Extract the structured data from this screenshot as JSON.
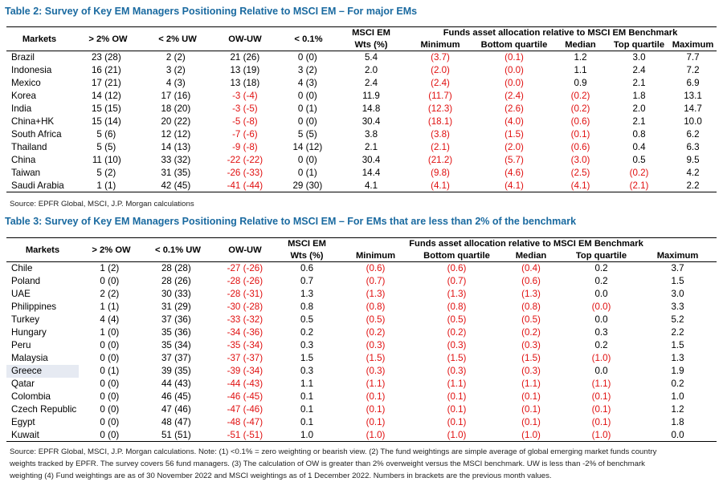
{
  "table2": {
    "title": "Table 2: Survey of Key EM Managers Positioning Relative to MSCI EM – For major EMs",
    "headers": {
      "markets": "Markets",
      "ow": "> 2% OW",
      "uw": "< 2% UW",
      "owuw": "OW-UW",
      "lt01": "< 0.1%",
      "msci_1": "MSCI EM",
      "msci_2": "Wts (%)",
      "group": "Funds asset allocation relative to MSCI EM Benchmark",
      "min": "Minimum",
      "bq": "Bottom quartile",
      "med": "Median",
      "tq": "Top quartile",
      "max": "Maximum"
    },
    "rows": [
      {
        "m": "Brazil",
        "ow": "23",
        "owp": "(28)",
        "uw": "2",
        "uwp": "(2)",
        "d": "21",
        "dp": "(26)",
        "z": "0",
        "zp": "(0)",
        "w": "5.4",
        "min": "(3.7)",
        "bq": "(0.1)",
        "med": "1.2",
        "tq": "3.0",
        "max": "7.7"
      },
      {
        "m": "Indonesia",
        "ow": "16",
        "owp": "(21)",
        "uw": "3",
        "uwp": "(2)",
        "d": "13",
        "dp": "(19)",
        "z": "3",
        "zp": "(2)",
        "w": "2.0",
        "min": "(2.0)",
        "bq": "(0.0)",
        "med": "1.1",
        "tq": "2.4",
        "max": "7.2"
      },
      {
        "m": "Mexico",
        "ow": "17",
        "owp": "(21)",
        "uw": "4",
        "uwp": "(3)",
        "d": "13",
        "dp": "(18)",
        "z": "4",
        "zp": "(3)",
        "w": "2.4",
        "min": "(2.4)",
        "bq": "(0.0)",
        "med": "0.9",
        "tq": "2.1",
        "max": "6.9"
      },
      {
        "m": "Korea",
        "ow": "14",
        "owp": "(12)",
        "uw": "17",
        "uwp": "(16)",
        "d": "-3",
        "dp": "(-4)",
        "z": "0",
        "zp": "(0)",
        "w": "11.9",
        "min": "(11.7)",
        "bq": "(2.4)",
        "med": "(0.2)",
        "tq": "1.8",
        "max": "13.1"
      },
      {
        "m": "India",
        "ow": "15",
        "owp": "(15)",
        "uw": "18",
        "uwp": "(20)",
        "d": "-3",
        "dp": "(-5)",
        "z": "0",
        "zp": "(1)",
        "w": "14.8",
        "min": "(12.3)",
        "bq": "(2.6)",
        "med": "(0.2)",
        "tq": "2.0",
        "max": "14.7"
      },
      {
        "m": "China+HK",
        "ow": "15",
        "owp": "(14)",
        "uw": "20",
        "uwp": "(22)",
        "d": "-5",
        "dp": "(-8)",
        "z": "0",
        "zp": "(0)",
        "w": "30.4",
        "min": "(18.1)",
        "bq": "(4.0)",
        "med": "(0.6)",
        "tq": "2.1",
        "max": "10.0"
      },
      {
        "m": "South Africa",
        "ow": "5",
        "owp": "(6)",
        "uw": "12",
        "uwp": "(12)",
        "d": "-7",
        "dp": "(-6)",
        "z": "5",
        "zp": "(5)",
        "w": "3.8",
        "min": "(3.8)",
        "bq": "(1.5)",
        "med": "(0.1)",
        "tq": "0.8",
        "max": "6.2"
      },
      {
        "m": "Thailand",
        "ow": "5",
        "owp": "(5)",
        "uw": "14",
        "uwp": "(13)",
        "d": "-9",
        "dp": "(-8)",
        "z": "14",
        "zp": "(12)",
        "w": "2.1",
        "min": "(2.1)",
        "bq": "(2.0)",
        "med": "(0.6)",
        "tq": "0.4",
        "max": "6.3"
      },
      {
        "m": "China",
        "ow": "11",
        "owp": "(10)",
        "uw": "33",
        "uwp": "(32)",
        "d": "-22",
        "dp": "(-22)",
        "z": "0",
        "zp": "(0)",
        "w": "30.4",
        "min": "(21.2)",
        "bq": "(5.7)",
        "med": "(3.0)",
        "tq": "0.5",
        "max": "9.5"
      },
      {
        "m": "Taiwan",
        "ow": "5",
        "owp": "(2)",
        "uw": "31",
        "uwp": "(35)",
        "d": "-26",
        "dp": "(-33)",
        "z": "0",
        "zp": "(1)",
        "w": "14.4",
        "min": "(9.8)",
        "bq": "(4.6)",
        "med": "(2.5)",
        "tq": "(0.2)",
        "max": "4.2"
      },
      {
        "m": "Saudi Arabia",
        "ow": "1",
        "owp": "(1)",
        "uw": "42",
        "uwp": "(45)",
        "d": "-41",
        "dp": "(-44)",
        "z": "29",
        "zp": "(30)",
        "w": "4.1",
        "min": "(4.1)",
        "bq": "(4.1)",
        "med": "(4.1)",
        "tq": "(2.1)",
        "max": "2.2"
      }
    ],
    "source": "Source: EPFR Global, MSCI, J.P. Morgan calculations"
  },
  "table3": {
    "title": "Table 3: Survey of Key EM Managers Positioning Relative to MSCI EM – For EMs that are less than 2% of the benchmark",
    "headers": {
      "markets": "Markets",
      "ow": "> 2% OW",
      "uw": "< 0.1% UW",
      "owuw": "OW-UW",
      "msci_1": "MSCI EM",
      "msci_2": "Wts (%)",
      "group": "Funds asset allocation relative to MSCI EM Benchmark",
      "min": "Minimum",
      "bq": "Bottom quartile",
      "med": "Median",
      "tq": "Top quartile",
      "max": "Maximum"
    },
    "rows": [
      {
        "m": "Chile",
        "ow": "1",
        "owp": "(2)",
        "uw": "28",
        "uwp": "(28)",
        "d": "-27",
        "dp": "(-26)",
        "w": "0.6",
        "min": "(0.6)",
        "bq": "(0.6)",
        "med": "(0.4)",
        "tq": "0.2",
        "max": "3.7"
      },
      {
        "m": "Poland",
        "ow": "0",
        "owp": "(0)",
        "uw": "28",
        "uwp": "(26)",
        "d": "-28",
        "dp": "(-26)",
        "w": "0.7",
        "min": "(0.7)",
        "bq": "(0.7)",
        "med": "(0.6)",
        "tq": "0.2",
        "max": "1.5"
      },
      {
        "m": "UAE",
        "ow": "2",
        "owp": "(2)",
        "uw": "30",
        "uwp": "(33)",
        "d": "-28",
        "dp": "(-31)",
        "w": "1.3",
        "min": "(1.3)",
        "bq": "(1.3)",
        "med": "(1.3)",
        "tq": "0.0",
        "max": "3.0"
      },
      {
        "m": "Philippines",
        "ow": "1",
        "owp": "(1)",
        "uw": "31",
        "uwp": "(29)",
        "d": "-30",
        "dp": "(-28)",
        "w": "0.8",
        "min": "(0.8)",
        "bq": "(0.8)",
        "med": "(0.8)",
        "tq": "(0.0)",
        "max": "3.3"
      },
      {
        "m": "Turkey",
        "ow": "4",
        "owp": "(4)",
        "uw": "37",
        "uwp": "(36)",
        "d": "-33",
        "dp": "(-32)",
        "w": "0.5",
        "min": "(0.5)",
        "bq": "(0.5)",
        "med": "(0.5)",
        "tq": "0.0",
        "max": "5.2"
      },
      {
        "m": "Hungary",
        "ow": "1",
        "owp": "(0)",
        "uw": "35",
        "uwp": "(36)",
        "d": "-34",
        "dp": "(-36)",
        "w": "0.2",
        "min": "(0.2)",
        "bq": "(0.2)",
        "med": "(0.2)",
        "tq": "0.3",
        "max": "2.2"
      },
      {
        "m": "Peru",
        "ow": "0",
        "owp": "(0)",
        "uw": "35",
        "uwp": "(34)",
        "d": "-35",
        "dp": "(-34)",
        "w": "0.3",
        "min": "(0.3)",
        "bq": "(0.3)",
        "med": "(0.3)",
        "tq": "0.2",
        "max": "1.5"
      },
      {
        "m": "Malaysia",
        "ow": "0",
        "owp": "(0)",
        "uw": "37",
        "uwp": "(37)",
        "d": "-37",
        "dp": "(-37)",
        "w": "1.5",
        "min": "(1.5)",
        "bq": "(1.5)",
        "med": "(1.5)",
        "tq": "(1.0)",
        "max": "1.3"
      },
      {
        "m": "Greece",
        "ow": "0",
        "owp": "(1)",
        "uw": "39",
        "uwp": "(35)",
        "d": "-39",
        "dp": "(-34)",
        "w": "0.3",
        "min": "(0.3)",
        "bq": "(0.3)",
        "med": "(0.3)",
        "tq": "0.0",
        "max": "1.9"
      },
      {
        "m": "Qatar",
        "ow": "0",
        "owp": "(0)",
        "uw": "44",
        "uwp": "(43)",
        "d": "-44",
        "dp": "(-43)",
        "w": "1.1",
        "min": "(1.1)",
        "bq": "(1.1)",
        "med": "(1.1)",
        "tq": "(1.1)",
        "max": "0.2"
      },
      {
        "m": "Colombia",
        "ow": "0",
        "owp": "(0)",
        "uw": "46",
        "uwp": "(45)",
        "d": "-46",
        "dp": "(-45)",
        "w": "0.1",
        "min": "(0.1)",
        "bq": "(0.1)",
        "med": "(0.1)",
        "tq": "(0.1)",
        "max": "1.0"
      },
      {
        "m": "Czech Republic",
        "ow": "0",
        "owp": "(0)",
        "uw": "47",
        "uwp": "(46)",
        "d": "-47",
        "dp": "(-46)",
        "w": "0.1",
        "min": "(0.1)",
        "bq": "(0.1)",
        "med": "(0.1)",
        "tq": "(0.1)",
        "max": "1.2"
      },
      {
        "m": "Egypt",
        "ow": "0",
        "owp": "(0)",
        "uw": "48",
        "uwp": "(47)",
        "d": "-48",
        "dp": "(-47)",
        "w": "0.1",
        "min": "(0.1)",
        "bq": "(0.1)",
        "med": "(0.1)",
        "tq": "(0.1)",
        "max": "1.8"
      },
      {
        "m": "Kuwait",
        "ow": "0",
        "owp": "(0)",
        "uw": "51",
        "uwp": "(51)",
        "d": "-51",
        "dp": "(-51)",
        "w": "1.0",
        "min": "(1.0)",
        "bq": "(1.0)",
        "med": "(1.0)",
        "tq": "(1.0)",
        "max": "0.0"
      }
    ],
    "source_lines": [
      "Source: EPFR Global, MSCI, J.P. Morgan calculations. Note: (1) <0.1% = zero weighting or bearish view. (2) The fund weightings are simple average of global emerging market funds country",
      "weights tracked by EPFR.  The survey covers 56 fund managers. (3) The calculation of OW is greater than 2% overweight versus the MSCI benchmark. UW is less than -2% of benchmark",
      "weighting (4) Fund weightings are as of 30 November 2022 and MSCI weightings as of 1 December 2022. Numbers in brackets are the previous month values."
    ]
  },
  "colors": {
    "title": "#1a6aa0",
    "negative": "#e01010",
    "highlight": "#e6eaf2"
  }
}
